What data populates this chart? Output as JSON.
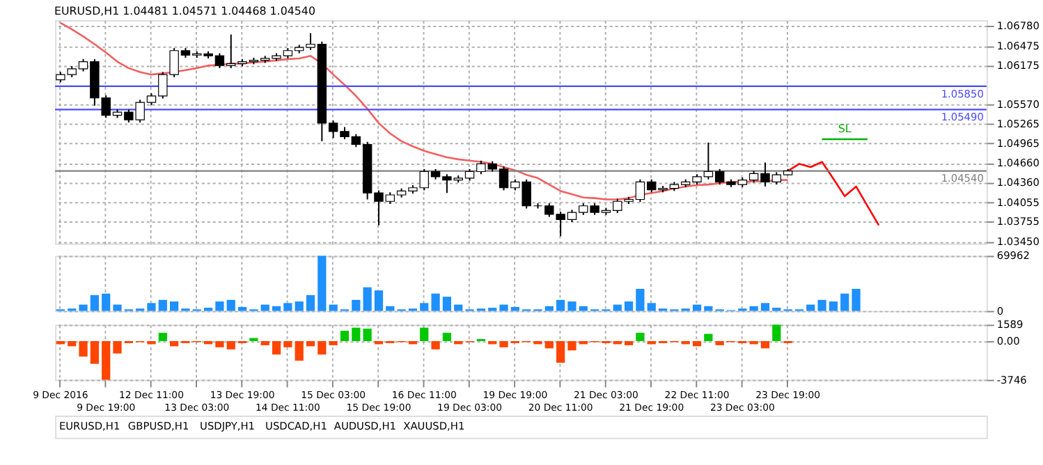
{
  "chart_data": [
    {
      "type": "candlestick",
      "title": "EURUSD,H1 1.04481 1.04571 1.04468 1.04540",
      "categories": [
        null,
        null,
        null,
        null,
        null,
        null,
        null,
        null,
        null,
        null,
        null,
        null,
        null,
        null,
        null,
        null,
        null,
        null,
        null,
        null,
        null,
        null,
        null,
        null,
        null,
        null,
        null,
        null,
        null,
        null,
        null,
        null,
        null,
        null,
        null,
        null,
        null,
        null,
        null,
        null,
        null,
        null,
        null,
        null,
        null,
        null,
        null,
        null,
        null,
        null,
        null,
        null,
        null,
        null,
        null,
        null,
        null,
        null,
        null,
        null,
        null,
        null,
        null,
        null,
        null,
        null,
        null,
        null,
        null,
        null,
        null,
        null,
        null,
        null,
        null,
        null,
        null,
        null,
        null,
        null,
        null,
        null
      ],
      "ohlc": [
        [
          1.0595,
          1.0607,
          1.0591,
          1.0603
        ],
        [
          1.0603,
          1.0616,
          1.0599,
          1.0612
        ],
        [
          1.0612,
          1.0627,
          1.0608,
          1.0623
        ],
        [
          1.0623,
          1.0627,
          1.0555,
          1.0567
        ],
        [
          1.0567,
          1.0571,
          1.0536,
          1.054
        ],
        [
          1.054,
          1.0549,
          1.0536,
          1.0545
        ],
        [
          1.0545,
          1.0549,
          1.0529,
          1.0533
        ],
        [
          1.0533,
          1.0564,
          1.0529,
          1.056
        ],
        [
          1.056,
          1.0574,
          1.0556,
          1.057
        ],
        [
          1.057,
          1.0607,
          1.0566,
          1.0603
        ],
        [
          1.0603,
          1.0644,
          1.0599,
          1.064
        ],
        [
          1.064,
          1.0644,
          1.0629,
          1.0633
        ],
        [
          1.0633,
          1.0639,
          1.0629,
          1.0635
        ],
        [
          1.0635,
          1.0639,
          1.0628,
          1.0632
        ],
        [
          1.0632,
          1.0636,
          1.0613,
          1.0617
        ],
        [
          1.0617,
          1.0665,
          1.0613,
          1.062
        ],
        [
          1.062,
          1.0627,
          1.0616,
          1.0623
        ],
        [
          1.0623,
          1.0629,
          1.0619,
          1.0625
        ],
        [
          1.0625,
          1.0632,
          1.0621,
          1.0628
        ],
        [
          1.0628,
          1.0636,
          1.0624,
          1.0632
        ],
        [
          1.0632,
          1.0644,
          1.0628,
          1.064
        ],
        [
          1.064,
          1.0649,
          1.0636,
          1.0645
        ],
        [
          1.0645,
          1.0667,
          1.0641,
          1.065
        ],
        [
          1.065,
          1.0654,
          1.05,
          1.0528
        ],
        [
          1.0528,
          1.0532,
          1.0505,
          1.0515
        ],
        [
          1.0515,
          1.0522,
          1.0503,
          1.0507
        ],
        [
          1.0507,
          1.0511,
          1.0491,
          1.0495
        ],
        [
          1.0495,
          1.0499,
          1.041,
          1.042
        ],
        [
          1.042,
          1.0424,
          1.037,
          1.0407
        ],
        [
          1.0407,
          1.0421,
          1.0403,
          1.0417
        ],
        [
          1.0417,
          1.0427,
          1.0413,
          1.0423
        ],
        [
          1.0423,
          1.0432,
          1.0419,
          1.0428
        ],
        [
          1.0428,
          1.0457,
          1.0424,
          1.0453
        ],
        [
          1.0453,
          1.0457,
          1.0441,
          1.0445
        ],
        [
          1.0445,
          1.0449,
          1.042,
          1.044
        ],
        [
          1.044,
          1.0447,
          1.0436,
          1.0443
        ],
        [
          1.0443,
          1.0457,
          1.0439,
          1.0453
        ],
        [
          1.0453,
          1.047,
          1.0449,
          1.0465
        ],
        [
          1.0465,
          1.0469,
          1.0453,
          1.0457
        ],
        [
          1.0457,
          1.0461,
          1.0424,
          1.0428
        ],
        [
          1.0428,
          1.0441,
          1.0424,
          1.0437
        ],
        [
          1.0437,
          1.0441,
          1.0396,
          1.04
        ],
        [
          1.04,
          1.0404,
          1.0396,
          1.04
        ],
        [
          1.04,
          1.0404,
          1.0383,
          1.0387
        ],
        [
          1.0387,
          1.0391,
          1.0353,
          1.0379
        ],
        [
          1.0379,
          1.0394,
          1.0375,
          1.039
        ],
        [
          1.039,
          1.0404,
          1.0386,
          1.04
        ],
        [
          1.04,
          1.0404,
          1.0386,
          1.039
        ],
        [
          1.039,
          1.0397,
          1.0386,
          1.0393
        ],
        [
          1.0393,
          1.0411,
          1.0389,
          1.0407
        ],
        [
          1.0407,
          1.0414,
          1.0403,
          1.041
        ],
        [
          1.041,
          1.0441,
          1.0406,
          1.0437
        ],
        [
          1.0437,
          1.0441,
          1.0421,
          1.0425
        ],
        [
          1.0425,
          1.0431,
          1.0421,
          1.0427
        ],
        [
          1.0427,
          1.0437,
          1.0423,
          1.0433
        ],
        [
          1.0433,
          1.0441,
          1.0429,
          1.0437
        ],
        [
          1.0437,
          1.0449,
          1.0433,
          1.0445
        ],
        [
          1.0445,
          1.0498,
          1.0441,
          1.0453
        ],
        [
          1.0453,
          1.0457,
          1.0433,
          1.0437
        ],
        [
          1.0437,
          1.0441,
          1.0429,
          1.0433
        ],
        [
          1.0433,
          1.0444,
          1.0429,
          1.044
        ],
        [
          1.044,
          1.0454,
          1.0436,
          1.045
        ],
        [
          1.045,
          1.0467,
          1.043,
          1.0437
        ],
        [
          1.0437,
          1.0452,
          1.0433,
          1.0448
        ],
        [
          1.0448,
          1.0457,
          1.0447,
          1.0454
        ],
        null,
        null,
        null,
        null,
        null,
        null,
        null,
        null,
        null,
        null,
        null,
        null,
        null,
        null,
        null,
        null,
        null
      ],
      "series": [
        {
          "type": "line",
          "color": "#f06060",
          "values": [
            1.0683,
            1.0673,
            1.0662,
            1.065,
            1.0637,
            1.0623,
            1.0613,
            1.0607,
            1.0603,
            1.0605,
            1.0607,
            1.061,
            1.0613,
            1.0617,
            1.0618,
            1.062,
            1.062,
            1.0622,
            1.0623,
            1.0625,
            1.0627,
            1.0628,
            1.0632,
            1.062,
            1.0603,
            1.0587,
            1.057,
            1.055,
            1.0528,
            1.0512,
            1.05,
            1.0492,
            1.0485,
            1.048,
            1.0475,
            1.0472,
            1.047,
            1.0468,
            1.0465,
            1.046,
            1.0455,
            1.0448,
            1.0443,
            1.0433,
            1.0423,
            1.0418,
            1.0413,
            1.0412,
            1.041,
            1.041,
            1.0412,
            1.0417,
            1.042,
            1.0423,
            1.0427,
            1.043,
            1.0432,
            1.0433,
            1.0435,
            1.0437,
            1.0437,
            1.0438,
            1.0438,
            1.044,
            1.044,
            null,
            null,
            null,
            null,
            null,
            null,
            null,
            null,
            null,
            null,
            null,
            null,
            null,
            null,
            null,
            null,
            null
          ]
        },
        {
          "type": "line",
          "color": "#ff0000",
          "values": [
            null,
            null,
            null,
            null,
            null,
            null,
            null,
            null,
            null,
            null,
            null,
            null,
            null,
            null,
            null,
            null,
            null,
            null,
            null,
            null,
            null,
            null,
            null,
            null,
            null,
            null,
            null,
            null,
            null,
            null,
            null,
            null,
            null,
            null,
            null,
            null,
            null,
            null,
            null,
            null,
            null,
            null,
            null,
            null,
            null,
            null,
            null,
            null,
            null,
            null,
            null,
            null,
            null,
            null,
            null,
            null,
            null,
            null,
            null,
            null,
            null,
            null,
            null,
            null,
            1.0454,
            1.0465,
            1.046,
            1.0468,
            1.0442,
            1.0415,
            1.043,
            1.04,
            1.037,
            null,
            null,
            null,
            null,
            null,
            null,
            null,
            null,
            null
          ]
        },
        {
          "type": "line",
          "name": "SL",
          "color": "#00b000",
          "values": [
            null,
            null,
            null,
            null,
            null,
            null,
            null,
            null,
            null,
            null,
            null,
            null,
            null,
            null,
            null,
            null,
            null,
            null,
            null,
            null,
            null,
            null,
            null,
            null,
            null,
            null,
            null,
            null,
            null,
            null,
            null,
            null,
            null,
            null,
            null,
            null,
            null,
            null,
            null,
            null,
            null,
            null,
            null,
            null,
            null,
            null,
            null,
            null,
            null,
            null,
            null,
            null,
            null,
            null,
            null,
            null,
            null,
            null,
            null,
            null,
            null,
            null,
            null,
            null,
            null,
            null,
            null,
            1.0503,
            1.0503,
            1.0503,
            1.0503,
            1.0503,
            null,
            null,
            null,
            null,
            null,
            null,
            null,
            null,
            null,
            null
          ]
        }
      ],
      "ylim": [
        1.0342,
        1.0687
      ],
      "yticks": [
        {
          "value": 1.0678,
          "label": "1.06780"
        },
        {
          "value": 1.06475,
          "label": "1.06475"
        },
        {
          "value": 1.06175,
          "label": "1.06175"
        },
        {
          "value": 1.0557,
          "label": "1.05570"
        },
        {
          "value": 1.05265,
          "label": "1.05265"
        },
        {
          "value": 1.04965,
          "label": "1.04965"
        },
        {
          "value": 1.0466,
          "label": "1.04660"
        },
        {
          "value": 1.0436,
          "label": "1.04360"
        },
        {
          "value": 1.04055,
          "label": "1.04055"
        },
        {
          "value": 1.03755,
          "label": "1.03755"
        },
        {
          "value": 1.0345,
          "label": "1.03450"
        }
      ],
      "ref_lines": [
        {
          "axis": "y",
          "value": 1.0585,
          "label": "1.05850",
          "color": "#4a4aff"
        },
        {
          "axis": "y",
          "value": 1.0549,
          "label": "1.05490",
          "color": "#4a4aff"
        },
        {
          "axis": "y",
          "value": 1.0454,
          "label": "1.04540",
          "color": "#808080"
        }
      ],
      "grid": true,
      "tick_labels": "y"
    },
    {
      "type": "bar",
      "color": "#1e90ff",
      "categories": [
        null,
        null,
        null,
        null,
        null,
        null,
        null,
        null,
        null,
        null,
        null,
        null,
        null,
        null,
        null,
        null,
        null,
        null,
        null,
        null,
        null,
        null,
        null,
        null,
        null,
        null,
        null,
        null,
        null,
        null,
        null,
        null,
        null,
        null,
        null,
        null,
        null,
        null,
        null,
        null,
        null,
        null,
        null,
        null,
        null,
        null,
        null,
        null,
        null,
        null,
        null,
        null,
        null,
        null,
        null,
        null,
        null,
        null,
        null,
        null,
        null,
        null,
        null,
        null,
        null,
        null,
        null,
        null,
        null,
        null,
        null,
        null,
        null,
        null,
        null,
        null,
        null,
        null,
        null,
        null,
        null,
        null
      ],
      "values": [
        2000,
        3000,
        8000,
        20000,
        22000,
        8000,
        2000,
        3000,
        10000,
        14000,
        12000,
        3000,
        2000,
        4000,
        12000,
        14000,
        5000,
        2000,
        8000,
        6000,
        10000,
        12000,
        20000,
        69962,
        8000,
        2000,
        14000,
        30000,
        26000,
        6000,
        2000,
        3000,
        10000,
        22000,
        18000,
        8000,
        2000,
        3000,
        4000,
        8000,
        5000,
        2000,
        2000,
        6000,
        14000,
        12000,
        6000,
        2000,
        2000,
        8000,
        12000,
        28000,
        10000,
        3000,
        2000,
        3000,
        8000,
        6000,
        2000,
        1000,
        3000,
        6000,
        10000,
        4000,
        2000,
        2000,
        8000,
        14000,
        12000,
        22000,
        28000,
        null,
        null,
        null,
        null,
        null,
        null,
        null,
        null,
        null,
        null,
        null
      ],
      "ylim": [
        0,
        69962
      ],
      "yticks": [
        0,
        69962
      ],
      "grid": true,
      "tick_labels": "y"
    },
    {
      "type": "bar",
      "categories": [
        "9 Dec 2016",
        null,
        null,
        null,
        "9 Dec 19:00",
        null,
        null,
        null,
        "12 Dec 11:00",
        null,
        null,
        null,
        "13 Dec 03:00",
        null,
        null,
        null,
        "13 Dec 19:00",
        null,
        null,
        null,
        "14 Dec 11:00",
        null,
        null,
        null,
        "15 Dec 03:00",
        null,
        null,
        null,
        "15 Dec 19:00",
        null,
        null,
        null,
        "16 Dec 11:00",
        null,
        null,
        null,
        "19 Dec 03:00",
        null,
        null,
        null,
        "19 Dec 19:00",
        null,
        null,
        null,
        "20 Dec 11:00",
        null,
        null,
        null,
        "21 Dec 03:00",
        null,
        null,
        null,
        "21 Dec 19:00",
        null,
        null,
        null,
        "22 Dec 11:00",
        null,
        null,
        null,
        "23 Dec 03:00",
        null,
        null,
        null,
        "23 Dec 19:00",
        null,
        null,
        null,
        null,
        null,
        null,
        null,
        null,
        null,
        null,
        null,
        null,
        null,
        null,
        null,
        null,
        null
      ],
      "values": [
        -300,
        -500,
        -1500,
        -2200,
        -3746,
        -1200,
        -200,
        -100,
        -300,
        800,
        -500,
        -200,
        -100,
        -300,
        -600,
        -800,
        -200,
        300,
        -400,
        -1300,
        -600,
        -1900,
        -500,
        -1300,
        -400,
        1000,
        1300,
        1200,
        -300,
        -200,
        -100,
        -300,
        1300,
        -800,
        800,
        -300,
        -100,
        200,
        -300,
        -600,
        -200,
        -100,
        -300,
        -700,
        -2100,
        -900,
        -300,
        -100,
        -200,
        -300,
        -400,
        800,
        -300,
        -200,
        -100,
        -300,
        -500,
        700,
        -400,
        -100,
        -200,
        -300,
        -700,
        1589,
        -200,
        null,
        null,
        null,
        null,
        null,
        null,
        null,
        null,
        null,
        null,
        null,
        null,
        null,
        null,
        null,
        null,
        null
      ],
      "colors": [
        "#ff4500",
        "#ff4500",
        "#ff4500",
        "#ff4500",
        "#ff4500",
        "#ff4500",
        "#ff4500",
        "#ff4500",
        "#ff4500",
        "#00c800",
        "#ff4500",
        "#ff4500",
        "#ff4500",
        "#ff4500",
        "#ff4500",
        "#ff4500",
        "#ff4500",
        "#00c800",
        "#ff4500",
        "#ff4500",
        "#ff4500",
        "#ff4500",
        "#ff4500",
        "#ff4500",
        "#ff4500",
        "#00c800",
        "#00c800",
        "#00c800",
        "#ff4500",
        "#ff4500",
        "#ff4500",
        "#ff4500",
        "#00c800",
        "#ff4500",
        "#00c800",
        "#ff4500",
        "#ff4500",
        "#00c800",
        "#ff4500",
        "#ff4500",
        "#ff4500",
        "#ff4500",
        "#ff4500",
        "#ff4500",
        "#ff4500",
        "#ff4500",
        "#ff4500",
        "#ff4500",
        "#ff4500",
        "#ff4500",
        "#ff4500",
        "#00c800",
        "#ff4500",
        "#ff4500",
        "#ff4500",
        "#ff4500",
        "#ff4500",
        "#00c800",
        "#ff4500",
        "#ff4500",
        "#ff4500",
        "#ff4500",
        "#ff4500",
        "#00c800",
        "#ff4500",
        null,
        null,
        null,
        null,
        null,
        null,
        null,
        null,
        null,
        null,
        null,
        null,
        null,
        null,
        null,
        null,
        null
      ],
      "ylim": [
        -3746,
        1589
      ],
      "yticks": [
        1589,
        {
          "value": 0,
          "label": "0.00"
        },
        -3746
      ],
      "grid": true
    },
    {
      "type": "other",
      "annotations": [
        "EURUSD,H1",
        "GBPUSD,H1",
        "USDJPY,H1",
        "USDCAD,H1",
        "AUDUSD,H1",
        "XAUUSD,H1"
      ]
    }
  ]
}
